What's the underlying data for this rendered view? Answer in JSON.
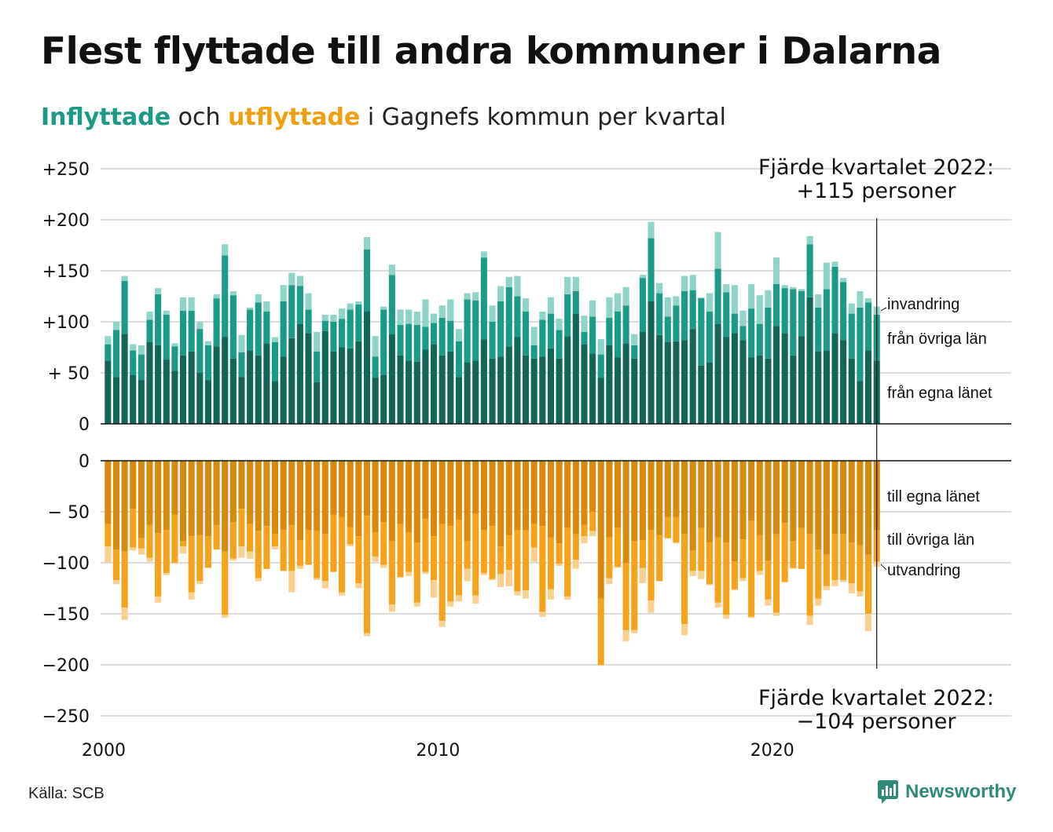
{
  "title": "Flest flyttade till andra kommuner i Dalarna",
  "subtitle": {
    "inflyttade": "Inflyttade",
    "och": "och",
    "utflyttade": "utflyttade",
    "rest": "i Gagnefs kommun per kvartal"
  },
  "source": "Källa: SCB",
  "brand": "Newsworthy",
  "colors": {
    "in_own": "#116658",
    "in_other": "#1b9a88",
    "in_immig": "#8fd4c9",
    "out_own": "#d98a0d",
    "out_other": "#f7a21b",
    "out_emig": "#f9d08f"
  },
  "chart_data": {
    "type": "bar",
    "start_year": 2000,
    "quarters_per_year": 4,
    "x_tick_labels": [
      "2000",
      "2010",
      "2020"
    ],
    "y_ticks_top": [
      "+250",
      "+200",
      "+150",
      "+100",
      "+ 50",
      "0"
    ],
    "y_ticks_bottom": [
      "0",
      "− 50",
      "−100",
      "−150",
      "−200",
      "−250"
    ],
    "ylim_top": [
      0,
      250
    ],
    "ylim_bottom": [
      -250,
      0
    ],
    "in_series_labels": [
      "invandring",
      "från övriga län",
      "från egna länet"
    ],
    "out_series_labels": [
      "till egna länet",
      "till övriga län",
      "utvandring"
    ],
    "annotation_top": {
      "line1": "Fjärde kvartalet 2022:",
      "line2": "+115 personer"
    },
    "annotation_bottom": {
      "line1": "Fjärde kvartalet 2022:",
      "line2": "−104 personer"
    },
    "inflyttade": {
      "egna_lanet": [
        62,
        46,
        88,
        48,
        43,
        80,
        77,
        63,
        52,
        67,
        71,
        50,
        43,
        76,
        85,
        64,
        46,
        72,
        67,
        79,
        42,
        66,
        84,
        98,
        89,
        41,
        91,
        71,
        75,
        74,
        81,
        110,
        45,
        48,
        88,
        67,
        62,
        61,
        73,
        78,
        67,
        71,
        46,
        60,
        62,
        83,
        64,
        66,
        76,
        85,
        67,
        64,
        66,
        74,
        64,
        86,
        108,
        78,
        69,
        45,
        77,
        65,
        79,
        64,
        90,
        120,
        87,
        80,
        81,
        82,
        93,
        57,
        60,
        98,
        85,
        89,
        82,
        65,
        67,
        64,
        96,
        89,
        67,
        86,
        124,
        71,
        72,
        89,
        82,
        64,
        42,
        72,
        62
      ],
      "ovriga_lan": [
        16,
        46,
        52,
        24,
        25,
        22,
        50,
        44,
        24,
        44,
        40,
        43,
        34,
        47,
        80,
        62,
        24,
        40,
        52,
        31,
        38,
        54,
        52,
        37,
        23,
        30,
        10,
        29,
        28,
        38,
        36,
        61,
        21,
        64,
        58,
        30,
        36,
        36,
        22,
        21,
        37,
        30,
        35,
        62,
        59,
        80,
        36,
        54,
        58,
        40,
        43,
        13,
        36,
        34,
        28,
        41,
        22,
        12,
        36,
        23,
        27,
        45,
        37,
        13,
        53,
        62,
        41,
        25,
        35,
        48,
        38,
        66,
        50,
        54,
        44,
        19,
        14,
        48,
        31,
        50,
        41,
        44,
        65,
        44,
        52,
        43,
        60,
        65,
        57,
        44,
        72,
        47,
        45
      ],
      "invandring": [
        8,
        8,
        5,
        6,
        9,
        8,
        6,
        4,
        3,
        13,
        13,
        7,
        4,
        4,
        11,
        4,
        17,
        2,
        8,
        10,
        5,
        16,
        12,
        10,
        16,
        19,
        6,
        7,
        10,
        6,
        3,
        12,
        20,
        3,
        10,
        15,
        14,
        13,
        27,
        9,
        12,
        21,
        12,
        6,
        8,
        6,
        16,
        15,
        10,
        20,
        13,
        18,
        8,
        16,
        11,
        17,
        14,
        16,
        16,
        15,
        20,
        18,
        18,
        11,
        3,
        16,
        10,
        19,
        9,
        15,
        15,
        1,
        18,
        36,
        8,
        28,
        15,
        24,
        28,
        17,
        26,
        3,
        2,
        2,
        8,
        13,
        26,
        5,
        4,
        10,
        16,
        4,
        8
      ]
    },
    "utflyttade": {
      "egna_lanet": [
        62,
        87,
        89,
        47,
        76,
        63,
        71,
        68,
        53,
        79,
        74,
        73,
        74,
        63,
        89,
        60,
        47,
        62,
        69,
        64,
        72,
        68,
        63,
        78,
        68,
        69,
        72,
        53,
        55,
        65,
        74,
        54,
        70,
        60,
        79,
        62,
        70,
        80,
        57,
        74,
        62,
        64,
        58,
        79,
        52,
        68,
        64,
        84,
        73,
        68,
        68,
        62,
        64,
        75,
        81,
        66,
        72,
        63,
        50,
        135,
        75,
        66,
        100,
        79,
        78,
        68,
        73,
        55,
        55,
        72,
        88,
        66,
        80,
        75,
        80,
        99,
        77,
        59,
        73,
        98,
        72,
        61,
        79,
        66,
        72,
        87,
        92,
        72,
        72,
        80,
        83,
        92,
        68
      ],
      "ovriga_lan": [
        22,
        30,
        55,
        38,
        10,
        32,
        62,
        42,
        47,
        5,
        55,
        45,
        31,
        24,
        62,
        36,
        37,
        27,
        46,
        42,
        12,
        40,
        45,
        25,
        34,
        46,
        46,
        56,
        74,
        17,
        46,
        115,
        24,
        42,
        62,
        52,
        39,
        59,
        52,
        43,
        95,
        74,
        74,
        27,
        80,
        42,
        52,
        27,
        34,
        60,
        59,
        23,
        84,
        51,
        20,
        67,
        25,
        11,
        19,
        65,
        40,
        38,
        66,
        87,
        27,
        69,
        45,
        21,
        25,
        88,
        20,
        42,
        41,
        64,
        71,
        27,
        38,
        94,
        35,
        38,
        77,
        58,
        26,
        40,
        80,
        48,
        31,
        45,
        45,
        40,
        45,
        58,
        31
      ],
      "utvandring": [
        16,
        4,
        12,
        3,
        6,
        4,
        6,
        2,
        1,
        7,
        7,
        3,
        0,
        0,
        3,
        2,
        11,
        7,
        3,
        0,
        3,
        0,
        21,
        3,
        0,
        2,
        7,
        0,
        3,
        2,
        5,
        3,
        5,
        3,
        7,
        1,
        4,
        4,
        2,
        17,
        6,
        5,
        6,
        12,
        8,
        2,
        1,
        13,
        16,
        4,
        8,
        14,
        5,
        10,
        2,
        3,
        9,
        7,
        5,
        1,
        6,
        1,
        11,
        3,
        15,
        12,
        0,
        0,
        1,
        11,
        5,
        8,
        1,
        5,
        4,
        1,
        3,
        1,
        4,
        6,
        3,
        0,
        1,
        0,
        9,
        7,
        4,
        6,
        2,
        10,
        5,
        17,
        5
      ]
    }
  }
}
